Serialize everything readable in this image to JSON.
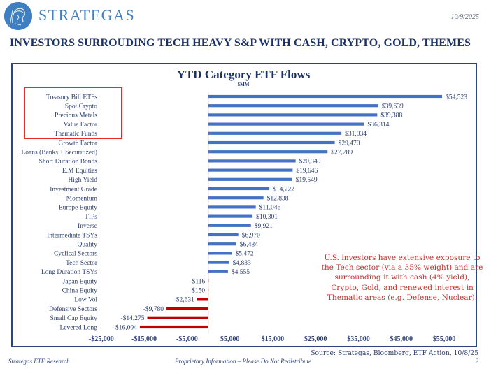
{
  "header": {
    "brand": "STRATEGAS",
    "date": "10/9/2025",
    "headline": "INVESTORS SURROUDING TECH HEAVY S&P WITH CASH, CRYPTO, GOLD, THEMES",
    "logo_icon": "spartan-helmet-logo-icon"
  },
  "colors": {
    "positive_bar": "#4472c4",
    "negative_bar": "#c00000",
    "title_navy": "#1c3266",
    "annotation_red": "#d42a2a",
    "highlight_box": "#e52b2b",
    "brand_blue": "#3f7fc1"
  },
  "chart_data": {
    "type": "bar",
    "orientation": "horizontal",
    "title": "YTD Category ETF Flows",
    "subtitle": "$MM",
    "xlabel": "",
    "ylabel": "",
    "xlim": [
      -25000,
      60000
    ],
    "x_ticks": [
      -25000,
      -15000,
      -5000,
      5000,
      15000,
      25000,
      35000,
      45000,
      55000
    ],
    "x_tick_labels": [
      "-$25,000",
      "-$15,000",
      "-$5,000",
      "$5,000",
      "$15,000",
      "$25,000",
      "$35,000",
      "$45,000",
      "$55,000"
    ],
    "grid": false,
    "legend": "none",
    "categories": [
      "Treasury Bill ETFs",
      "Spot Crypto",
      "Precious Metals",
      "Value Factor",
      "Thematic Funds",
      "Growth Factor",
      "Loans (Banks + Securitized)",
      "Short Duration Bonds",
      "E.M Equities",
      "High Yield",
      "Investment Grade",
      "Momentum",
      "Europe Equity",
      "TIPs",
      "Inverse",
      "Intermediate TSYs",
      "Quality",
      "Cyclical Sectors",
      "Tech Sector",
      "Long Duration TSYs",
      "Japan Equity",
      "China Equity",
      "Low Vol",
      "Defensive Sectors",
      "Small Cap Equity",
      "Levered Long"
    ],
    "values": [
      54523,
      39639,
      39388,
      36314,
      31034,
      29470,
      27789,
      20349,
      19646,
      19549,
      14222,
      12838,
      11046,
      10301,
      9921,
      6970,
      6484,
      5472,
      4833,
      4555,
      -116,
      -150,
      -2631,
      -9780,
      -14275,
      -16004
    ],
    "value_labels": [
      "$54,523",
      "$39,639",
      "$39,388",
      "$36,314",
      "$31,034",
      "$29,470",
      "$27,789",
      "$20,349",
      "$19,646",
      "$19,549",
      "$14,222",
      "$12,838",
      "$11,046",
      "$10,301",
      "$9,921",
      "$6,970",
      "$6,484",
      "$5,472",
      "$4,833",
      "$4,555",
      "-$116",
      "-$150",
      "-$2,631",
      "-$9,780",
      "-$14,275",
      "-$16,004"
    ],
    "highlighted_categories": [
      "Treasury Bill ETFs",
      "Spot Crypto",
      "Precious Metals",
      "Value Factor",
      "Thematic Funds"
    ],
    "annotation": "U.S. investors have extensive exposure to the Tech sector (via a 35% weight) and are surrounding it with cash (4% yield), Crypto, Gold, and renewed interest in Thematic areas (e.g. Defense, Nuclear)."
  },
  "footer": {
    "source": "Source: Strategas, Bloomberg, ETF Action, 10/8/25",
    "left": "Strategas ETF Research",
    "middle": "Proprietary Information – Please Do Not Redistribute",
    "page": "2"
  }
}
